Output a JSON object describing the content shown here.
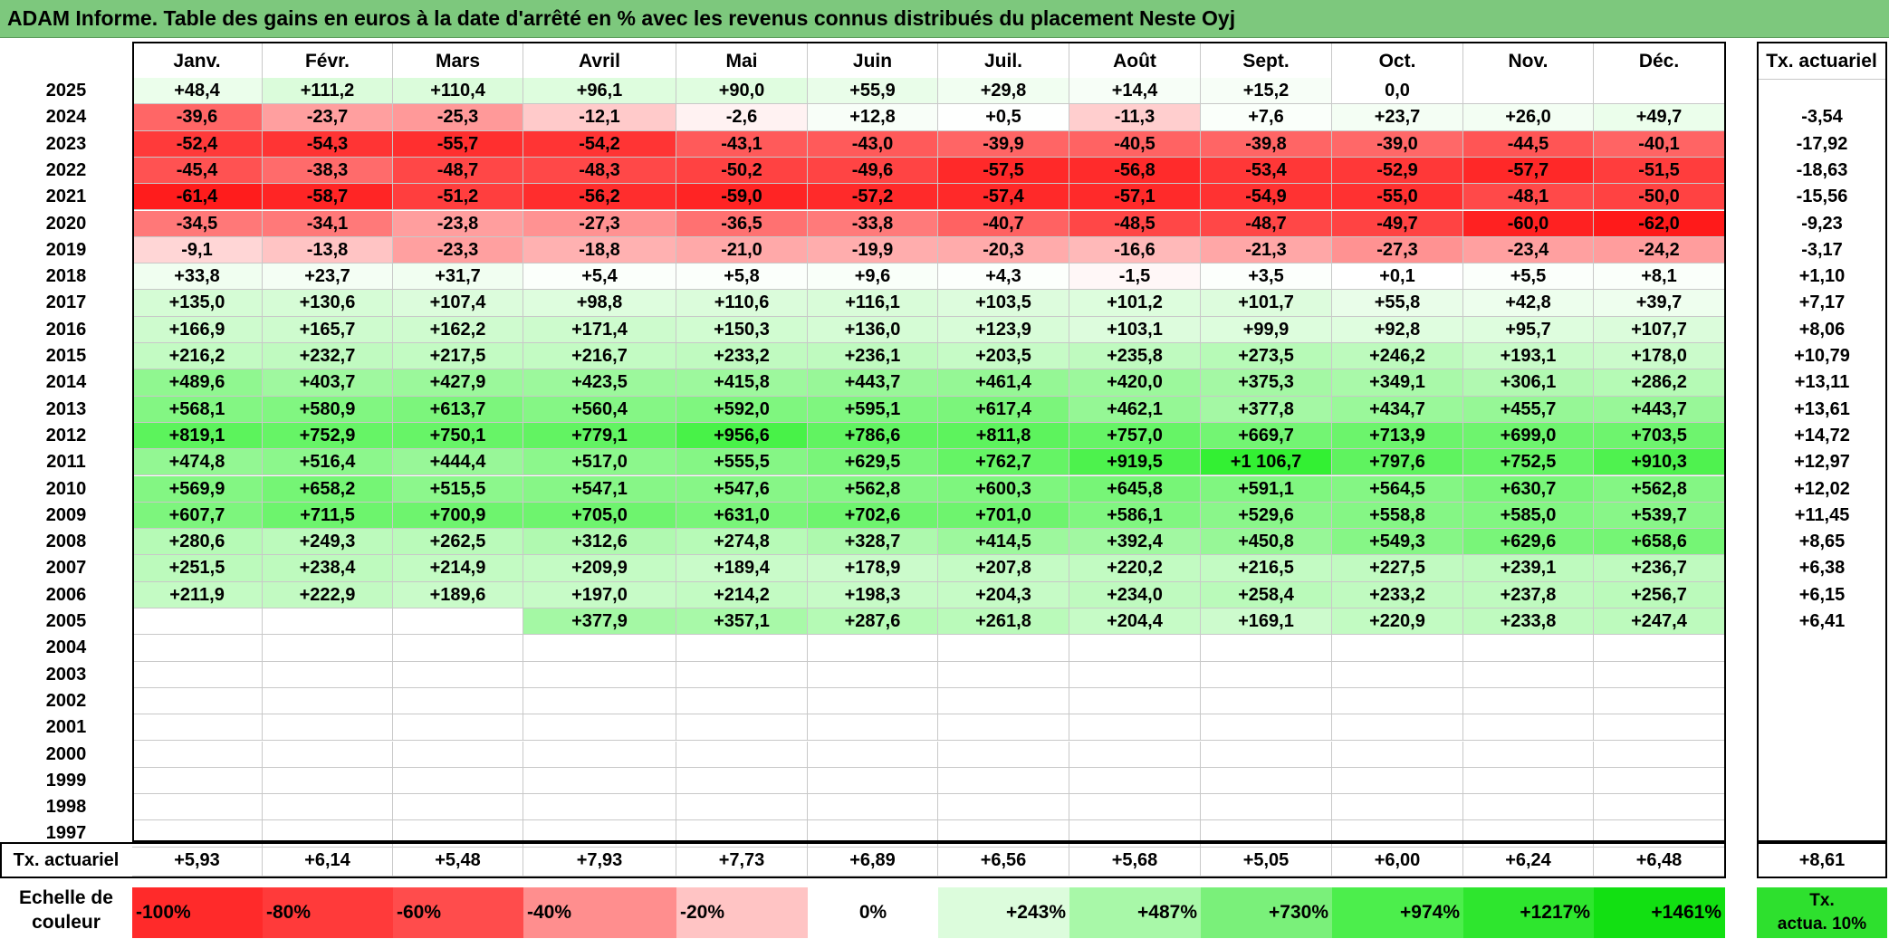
{
  "title": "ADAM Informe. Table des gains en euros à la date d'arrêté en % avec les revenus connus distribués du placement Neste Oyj",
  "chart_data": {
    "type": "table",
    "months": [
      "Janv.",
      "Févr.",
      "Mars",
      "Avril",
      "Mai",
      "Juin",
      "Juil.",
      "Août",
      "Sept.",
      "Oct.",
      "Nov.",
      "Déc."
    ],
    "annual_header": "Tx. actuariel",
    "rows": [
      {
        "year": "2025",
        "values": [
          "+48,4",
          "+111,2",
          "+110,4",
          "+96,1",
          "+90,0",
          "+55,9",
          "+29,8",
          "+14,4",
          "+15,2",
          "0,0",
          "",
          ""
        ],
        "annual": ""
      },
      {
        "year": "2024",
        "values": [
          "-39,6",
          "-23,7",
          "-25,3",
          "-12,1",
          "-2,6",
          "+12,8",
          "+0,5",
          "-11,3",
          "+7,6",
          "+23,7",
          "+26,0",
          "+49,7"
        ],
        "annual": "-3,54"
      },
      {
        "year": "2023",
        "values": [
          "-52,4",
          "-54,3",
          "-55,7",
          "-54,2",
          "-43,1",
          "-43,0",
          "-39,9",
          "-40,5",
          "-39,8",
          "-39,0",
          "-44,5",
          "-40,1"
        ],
        "annual": "-17,92"
      },
      {
        "year": "2022",
        "values": [
          "-45,4",
          "-38,3",
          "-48,7",
          "-48,3",
          "-50,2",
          "-49,6",
          "-57,5",
          "-56,8",
          "-53,4",
          "-52,9",
          "-57,7",
          "-51,5"
        ],
        "annual": "-18,63"
      },
      {
        "year": "2021",
        "values": [
          "-61,4",
          "-58,7",
          "-51,2",
          "-56,2",
          "-59,0",
          "-57,2",
          "-57,4",
          "-57,1",
          "-54,9",
          "-55,0",
          "-48,1",
          "-50,0"
        ],
        "annual": "-15,56"
      },
      {
        "year": "2020",
        "values": [
          "-34,5",
          "-34,1",
          "-23,8",
          "-27,3",
          "-36,5",
          "-33,8",
          "-40,7",
          "-48,5",
          "-48,7",
          "-49,7",
          "-60,0",
          "-62,0"
        ],
        "annual": "-9,23"
      },
      {
        "year": "2019",
        "values": [
          "-9,1",
          "-13,8",
          "-23,3",
          "-18,8",
          "-21,0",
          "-19,9",
          "-20,3",
          "-16,6",
          "-21,3",
          "-27,3",
          "-23,4",
          "-24,2"
        ],
        "annual": "-3,17"
      },
      {
        "year": "2018",
        "values": [
          "+33,8",
          "+23,7",
          "+31,7",
          "+5,4",
          "+5,8",
          "+9,6",
          "+4,3",
          "-1,5",
          "+3,5",
          "+0,1",
          "+5,5",
          "+8,1"
        ],
        "annual": "+1,10"
      },
      {
        "year": "2017",
        "values": [
          "+135,0",
          "+130,6",
          "+107,4",
          "+98,8",
          "+110,6",
          "+116,1",
          "+103,5",
          "+101,2",
          "+101,7",
          "+55,8",
          "+42,8",
          "+39,7"
        ],
        "annual": "+7,17"
      },
      {
        "year": "2016",
        "values": [
          "+166,9",
          "+165,7",
          "+162,2",
          "+171,4",
          "+150,3",
          "+136,0",
          "+123,9",
          "+103,1",
          "+99,9",
          "+92,8",
          "+95,7",
          "+107,7"
        ],
        "annual": "+8,06"
      },
      {
        "year": "2015",
        "values": [
          "+216,2",
          "+232,7",
          "+217,5",
          "+216,7",
          "+233,2",
          "+236,1",
          "+203,5",
          "+235,8",
          "+273,5",
          "+246,2",
          "+193,1",
          "+178,0"
        ],
        "annual": "+10,79"
      },
      {
        "year": "2014",
        "values": [
          "+489,6",
          "+403,7",
          "+427,9",
          "+423,5",
          "+415,8",
          "+443,7",
          "+461,4",
          "+420,0",
          "+375,3",
          "+349,1",
          "+306,1",
          "+286,2"
        ],
        "annual": "+13,11"
      },
      {
        "year": "2013",
        "values": [
          "+568,1",
          "+580,9",
          "+613,7",
          "+560,4",
          "+592,0",
          "+595,1",
          "+617,4",
          "+462,1",
          "+377,8",
          "+434,7",
          "+455,7",
          "+443,7"
        ],
        "annual": "+13,61"
      },
      {
        "year": "2012",
        "values": [
          "+819,1",
          "+752,9",
          "+750,1",
          "+779,1",
          "+956,6",
          "+786,6",
          "+811,8",
          "+757,0",
          "+669,7",
          "+713,9",
          "+699,0",
          "+703,5"
        ],
        "annual": "+14,72"
      },
      {
        "year": "2011",
        "values": [
          "+474,8",
          "+516,4",
          "+444,4",
          "+517,0",
          "+555,5",
          "+629,5",
          "+762,7",
          "+919,5",
          "+1 106,7",
          "+797,6",
          "+752,5",
          "+910,3"
        ],
        "annual": "+12,97"
      },
      {
        "year": "2010",
        "values": [
          "+569,9",
          "+658,2",
          "+515,5",
          "+547,1",
          "+547,6",
          "+562,8",
          "+600,3",
          "+645,8",
          "+591,1",
          "+564,5",
          "+630,7",
          "+562,8"
        ],
        "annual": "+12,02"
      },
      {
        "year": "2009",
        "values": [
          "+607,7",
          "+711,5",
          "+700,9",
          "+705,0",
          "+631,0",
          "+702,6",
          "+701,0",
          "+586,1",
          "+529,6",
          "+558,8",
          "+585,0",
          "+539,7"
        ],
        "annual": "+11,45"
      },
      {
        "year": "2008",
        "values": [
          "+280,6",
          "+249,3",
          "+262,5",
          "+312,6",
          "+274,8",
          "+328,7",
          "+414,5",
          "+392,4",
          "+450,8",
          "+549,3",
          "+629,6",
          "+658,6"
        ],
        "annual": "+8,65"
      },
      {
        "year": "2007",
        "values": [
          "+251,5",
          "+238,4",
          "+214,9",
          "+209,9",
          "+189,4",
          "+178,9",
          "+207,8",
          "+220,2",
          "+216,5",
          "+227,5",
          "+239,1",
          "+236,7"
        ],
        "annual": "+6,38"
      },
      {
        "year": "2006",
        "values": [
          "+211,9",
          "+222,9",
          "+189,6",
          "+197,0",
          "+214,2",
          "+198,3",
          "+204,3",
          "+234,0",
          "+258,4",
          "+233,2",
          "+237,8",
          "+256,7"
        ],
        "annual": "+6,15"
      },
      {
        "year": "2005",
        "values": [
          "",
          "",
          "",
          "+377,9",
          "+357,1",
          "+287,6",
          "+261,8",
          "+204,4",
          "+169,1",
          "+220,9",
          "+233,8",
          "+247,4"
        ],
        "annual": "+6,41"
      },
      {
        "year": "2004",
        "values": [
          "",
          "",
          "",
          "",
          "",
          "",
          "",
          "",
          "",
          "",
          "",
          ""
        ],
        "annual": ""
      },
      {
        "year": "2003",
        "values": [
          "",
          "",
          "",
          "",
          "",
          "",
          "",
          "",
          "",
          "",
          "",
          ""
        ],
        "annual": ""
      },
      {
        "year": "2002",
        "values": [
          "",
          "",
          "",
          "",
          "",
          "",
          "",
          "",
          "",
          "",
          "",
          ""
        ],
        "annual": ""
      },
      {
        "year": "2001",
        "values": [
          "",
          "",
          "",
          "",
          "",
          "",
          "",
          "",
          "",
          "",
          "",
          ""
        ],
        "annual": ""
      },
      {
        "year": "2000",
        "values": [
          "",
          "",
          "",
          "",
          "",
          "",
          "",
          "",
          "",
          "",
          "",
          ""
        ],
        "annual": ""
      },
      {
        "year": "1999",
        "values": [
          "",
          "",
          "",
          "",
          "",
          "",
          "",
          "",
          "",
          "",
          "",
          ""
        ],
        "annual": ""
      },
      {
        "year": "1998",
        "values": [
          "",
          "",
          "",
          "",
          "",
          "",
          "",
          "",
          "",
          "",
          "",
          ""
        ],
        "annual": ""
      },
      {
        "year": "1997",
        "values": [
          "",
          "",
          "",
          "",
          "",
          "",
          "",
          "",
          "",
          "",
          "",
          ""
        ],
        "annual": ""
      }
    ],
    "footer": {
      "label": "Tx. actuariel",
      "values": [
        "+5,93",
        "+6,14",
        "+5,48",
        "+7,93",
        "+7,73",
        "+6,89",
        "+6,56",
        "+5,68",
        "+5,05",
        "+6,00",
        "+6,24",
        "+6,48"
      ],
      "annual": "+8,61"
    },
    "color_scale": {
      "label_line1": "Echelle de",
      "label_line2": "couleur",
      "items": [
        {
          "label": "-100%",
          "color": "#ff2a2a",
          "align": "left"
        },
        {
          "label": "-80%",
          "color": "#ff3a3a",
          "align": "left"
        },
        {
          "label": "-60%",
          "color": "#ff4c4c",
          "align": "left"
        },
        {
          "label": "-40%",
          "color": "#ff8e8e",
          "align": "left"
        },
        {
          "label": "-20%",
          "color": "#ffc4c4",
          "align": "left"
        },
        {
          "label": "0%",
          "color": "#ffffff",
          "align": "center"
        },
        {
          "label": "+243%",
          "color": "#dcfcdc",
          "align": "right"
        },
        {
          "label": "+487%",
          "color": "#a8f8a8",
          "align": "right"
        },
        {
          "label": "+730%",
          "color": "#7af07a",
          "align": "right"
        },
        {
          "label": "+974%",
          "color": "#4cee4c",
          "align": "right"
        },
        {
          "label": "+1217%",
          "color": "#2ee62e",
          "align": "right"
        },
        {
          "label": "+1461%",
          "color": "#12e012",
          "align": "right"
        }
      ],
      "annual_line1": "Tx.",
      "annual_line2": "actua. 10%"
    }
  }
}
